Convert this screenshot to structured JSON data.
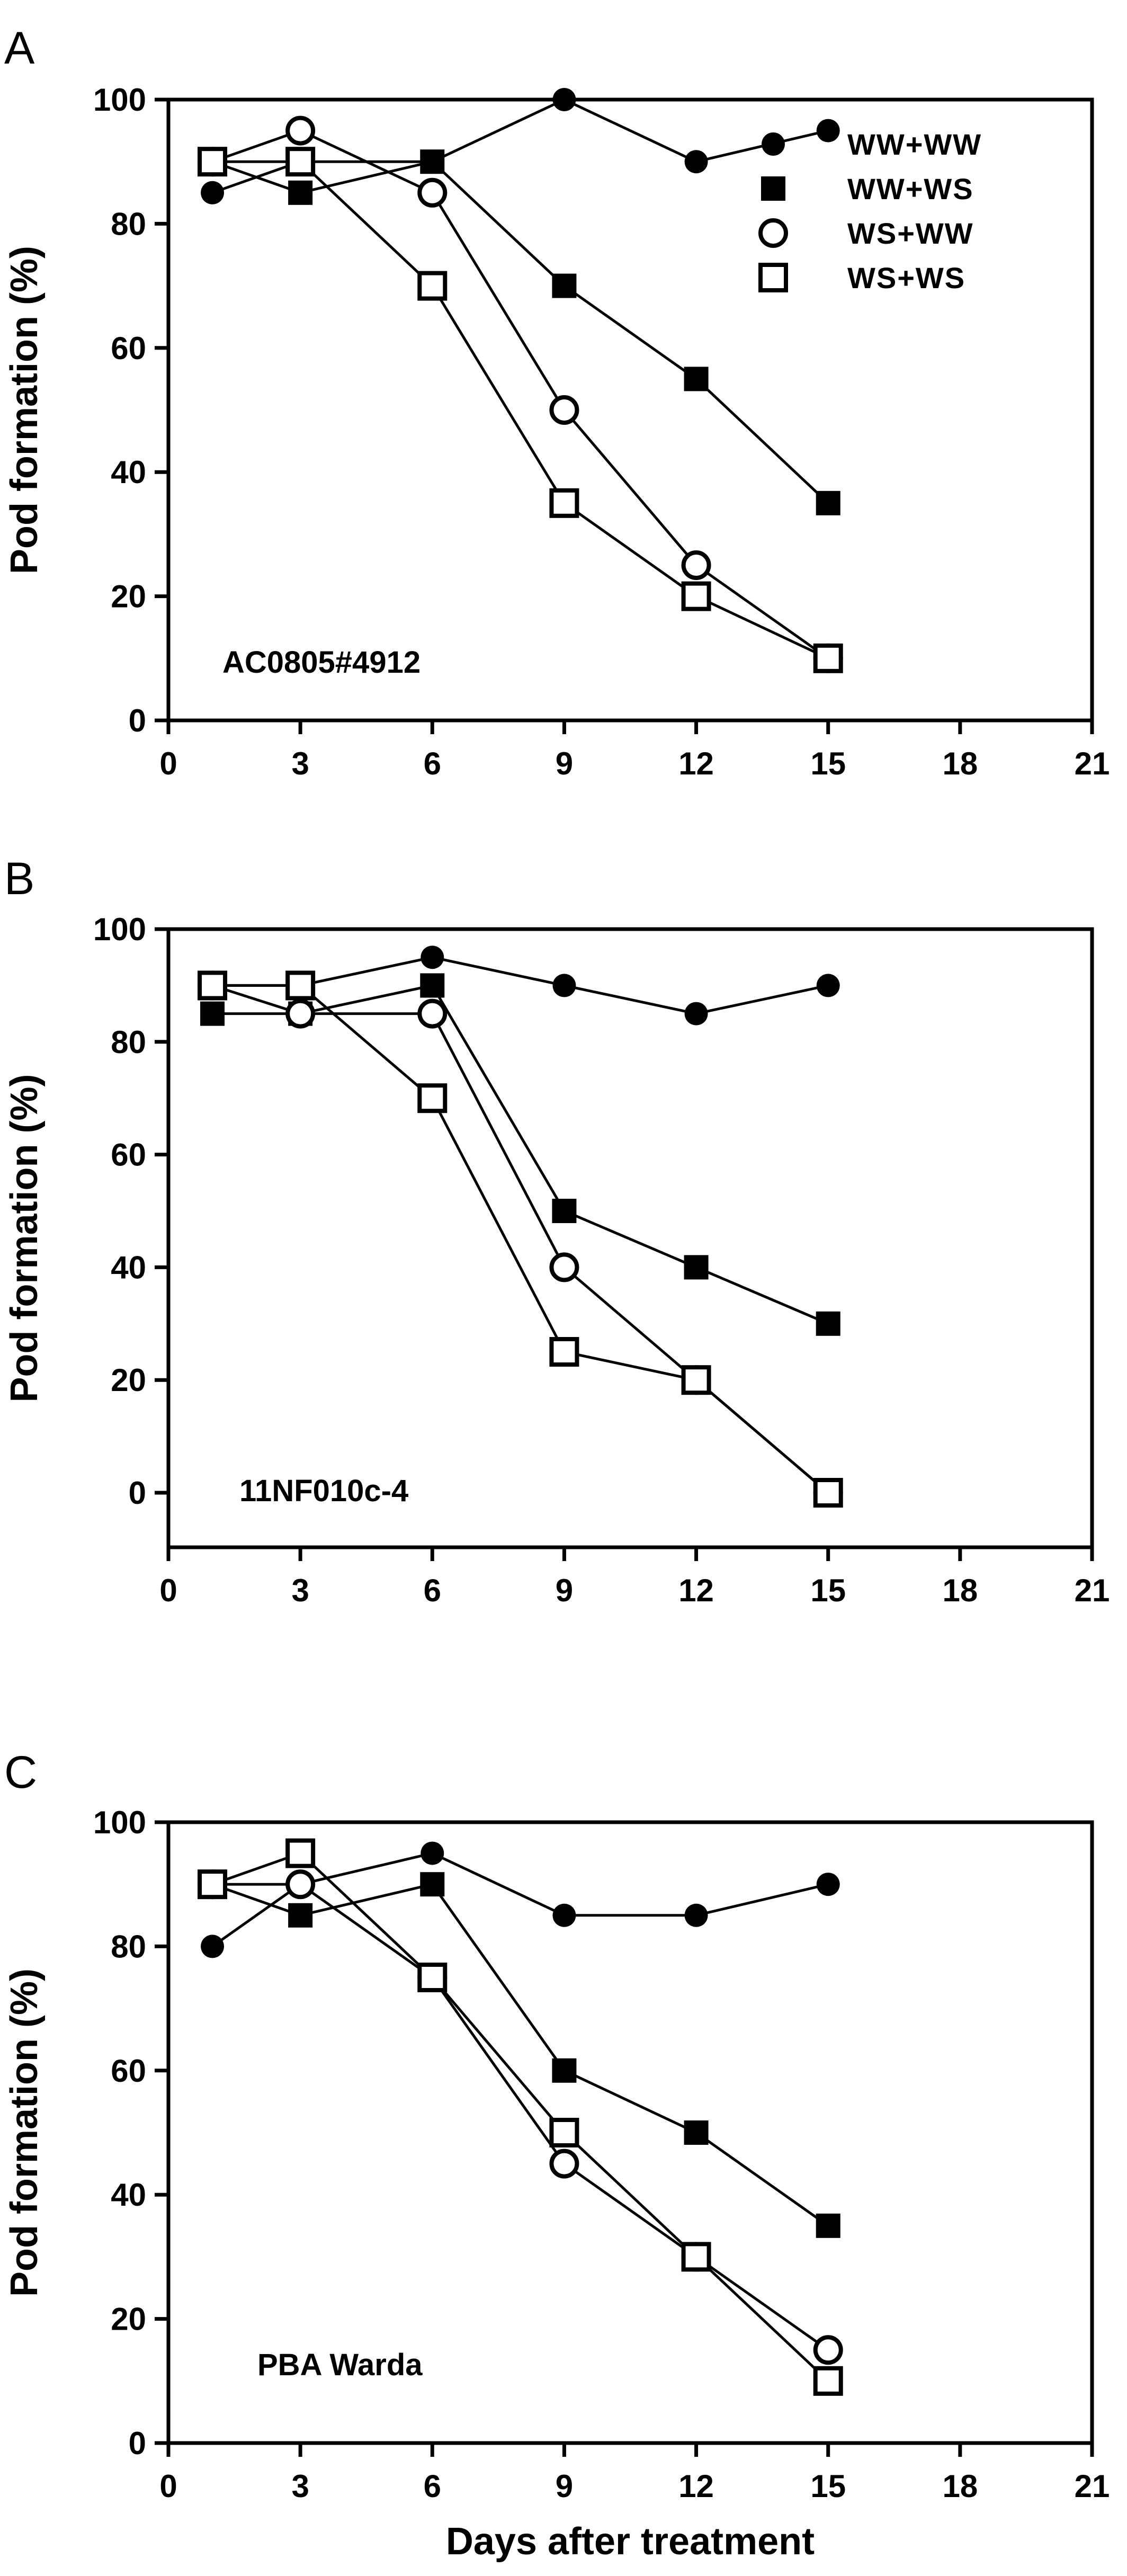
{
  "chart_data": [
    {
      "type": "line",
      "panel_label": "A",
      "inset_label": "AC0805#4912",
      "xlabel": "",
      "ylabel": "Pod formation (%)",
      "xlim": [
        0,
        21
      ],
      "ylim": [
        0,
        100
      ],
      "xticks": [
        0,
        3,
        6,
        9,
        12,
        15,
        18,
        21
      ],
      "yticks": [
        0,
        20,
        40,
        60,
        80,
        100
      ],
      "legend": "top-right",
      "series": [
        {
          "name": "WW+WW",
          "marker": "filled-circle",
          "x": [
            1,
            3,
            6,
            9,
            12,
            15
          ],
          "values": [
            85,
            90,
            90,
            100,
            90,
            95
          ]
        },
        {
          "name": "WW+WS",
          "marker": "filled-square",
          "x": [
            1,
            3,
            6,
            9,
            12,
            15
          ],
          "values": [
            90,
            85,
            90,
            70,
            55,
            35
          ]
        },
        {
          "name": "WS+WW",
          "marker": "open-circle",
          "x": [
            1,
            3,
            6,
            9,
            12,
            15
          ],
          "values": [
            90,
            95,
            85,
            50,
            25,
            10
          ]
        },
        {
          "name": "WS+WS",
          "marker": "open-square",
          "x": [
            1,
            3,
            6,
            9,
            12,
            15
          ],
          "values": [
            90,
            90,
            70,
            35,
            20,
            10
          ]
        }
      ]
    },
    {
      "type": "line",
      "panel_label": "B",
      "inset_label": "11NF010c-4",
      "xlabel": "",
      "ylabel": "Pod formation (%)",
      "xlim": [
        0,
        21
      ],
      "ylim": [
        -10,
        100
      ],
      "xticks": [
        0,
        3,
        6,
        9,
        12,
        15,
        18,
        21
      ],
      "yticks": [
        0,
        20,
        40,
        60,
        80,
        100
      ],
      "series": [
        {
          "name": "WW+WW",
          "marker": "filled-circle",
          "x": [
            1,
            3,
            6,
            9,
            12,
            15
          ],
          "values": [
            90,
            90,
            95,
            90,
            85,
            90
          ]
        },
        {
          "name": "WW+WS",
          "marker": "filled-square",
          "x": [
            1,
            3,
            6,
            9,
            12,
            15
          ],
          "values": [
            85,
            85,
            90,
            50,
            40,
            30
          ]
        },
        {
          "name": "WS+WW",
          "marker": "open-circle",
          "x": [
            1,
            3,
            6,
            9,
            12,
            15
          ],
          "values": [
            90,
            85,
            85,
            40,
            20,
            0
          ]
        },
        {
          "name": "WS+WS",
          "marker": "open-square",
          "x": [
            1,
            3,
            6,
            9,
            12,
            15
          ],
          "values": [
            90,
            90,
            70,
            25,
            20,
            0
          ]
        }
      ]
    },
    {
      "type": "line",
      "panel_label": "C",
      "inset_label": "PBA Warda",
      "xlabel": "Days after treatment",
      "ylabel": "Pod formation (%)",
      "xlim": [
        0,
        21
      ],
      "ylim": [
        0,
        100
      ],
      "xticks": [
        0,
        3,
        6,
        9,
        12,
        15,
        18,
        21
      ],
      "yticks": [
        0,
        20,
        40,
        60,
        80,
        100
      ],
      "series": [
        {
          "name": "WW+WW",
          "marker": "filled-circle",
          "x": [
            1,
            3,
            6,
            9,
            12,
            15
          ],
          "values": [
            80,
            90,
            95,
            85,
            85,
            90
          ]
        },
        {
          "name": "WW+WS",
          "marker": "filled-square",
          "x": [
            1,
            3,
            6,
            9,
            12,
            15
          ],
          "values": [
            90,
            85,
            90,
            60,
            50,
            35
          ]
        },
        {
          "name": "WS+WW",
          "marker": "open-circle",
          "x": [
            1,
            3,
            6,
            9,
            12,
            15
          ],
          "values": [
            90,
            90,
            75,
            45,
            30,
            15
          ]
        },
        {
          "name": "WS+WS",
          "marker": "open-square",
          "x": [
            1,
            3,
            6,
            9,
            12,
            15
          ],
          "values": [
            90,
            95,
            75,
            50,
            30,
            10
          ]
        }
      ]
    }
  ]
}
